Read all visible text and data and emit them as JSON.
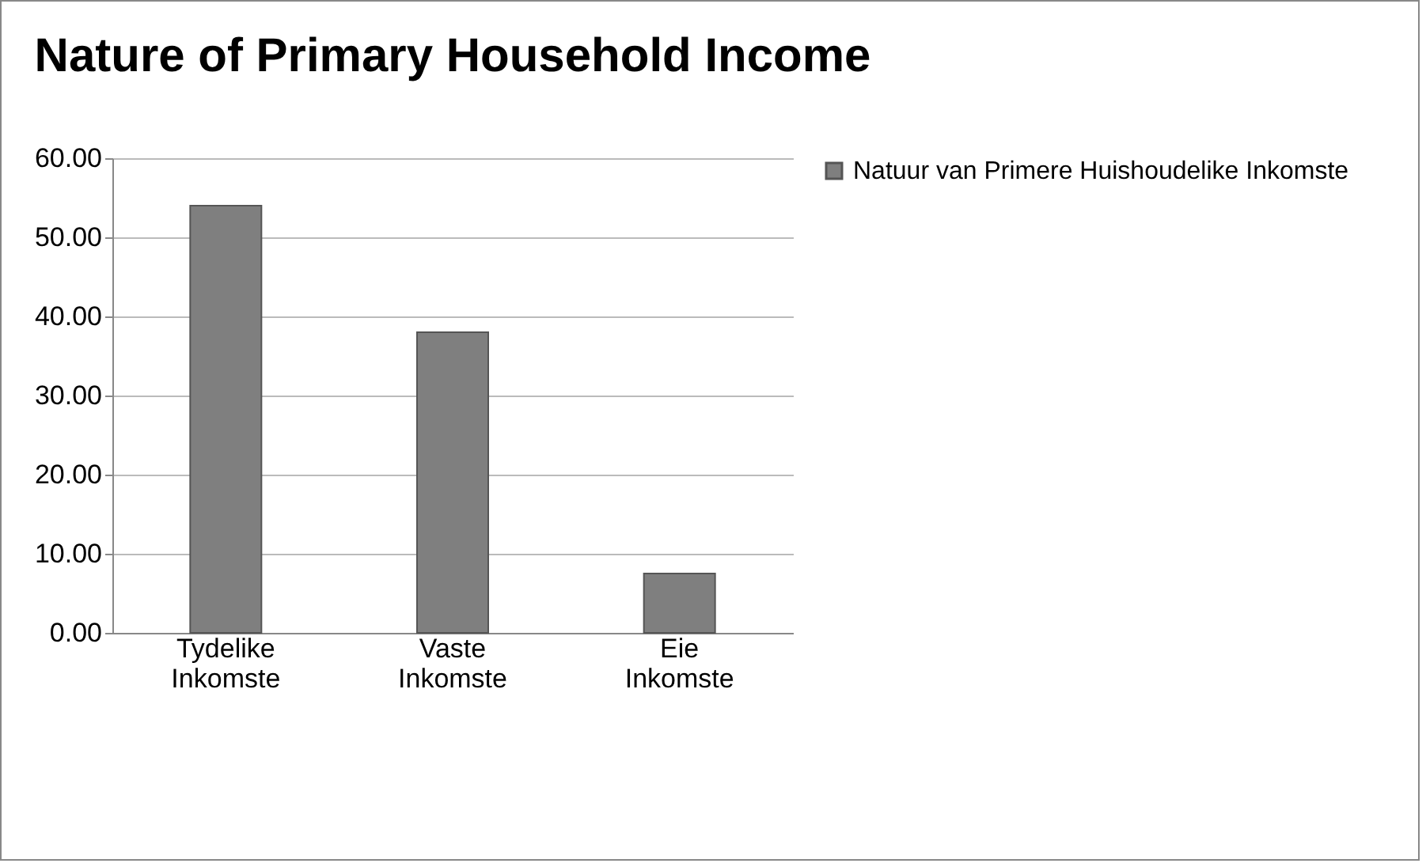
{
  "chart_data": {
    "type": "bar",
    "title": "Nature of Primary Household Income",
    "categories": [
      "Tydelike Inkomste",
      "Vaste Inkomste",
      "Eie Inkomste"
    ],
    "series": [
      {
        "name": "Natuur van Primere Huishoudelike Inkomste",
        "color": "#7f7f7f",
        "values": [
          54,
          38,
          7.5
        ]
      }
    ],
    "ylim": [
      0,
      60
    ],
    "yticks": [
      {
        "value": 0,
        "label": "0.00"
      },
      {
        "value": 10,
        "label": "10.00"
      },
      {
        "value": 20,
        "label": "20.00"
      },
      {
        "value": 30,
        "label": "30.00"
      },
      {
        "value": 40,
        "label": "40.00"
      },
      {
        "value": 50,
        "label": "50.00"
      },
      {
        "value": 60,
        "label": "60.00"
      }
    ],
    "grid": "y",
    "legend": "right"
  }
}
